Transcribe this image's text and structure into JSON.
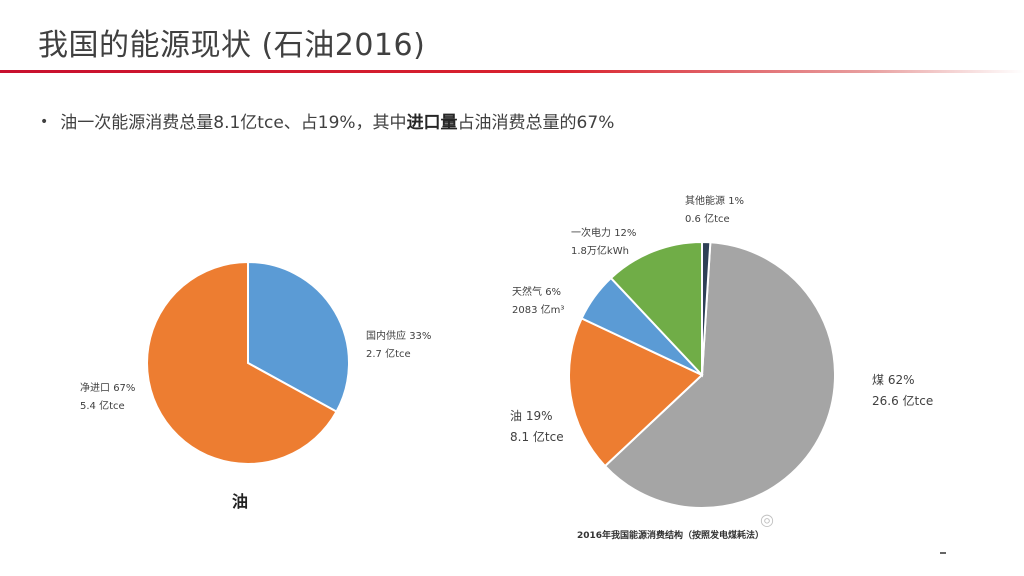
{
  "slide": {
    "title": "我国的能源现状 (石油2016)",
    "bullet": {
      "pre": "油一次能源消费总量8.1亿tce、占19%，其中",
      "bold": "进口量",
      "post": "占油消费总量的67%"
    }
  },
  "colors": {
    "title_rule": "#d9232e",
    "orange": "#ed7d31",
    "blue": "#5b9bd5",
    "gray": "#a5a5a5",
    "green": "#70ad47",
    "navy": "#2f4057"
  },
  "chart_data": [
    {
      "type": "pie",
      "title": "油",
      "slices": [
        {
          "label": "国内供应",
          "pct": "33%",
          "value": 33,
          "amount": "2.7 亿tce",
          "color": "#5b9bd5"
        },
        {
          "label": "净进口",
          "pct": "67%",
          "value": 67,
          "amount": "5.4 亿tce",
          "color": "#ed7d31"
        }
      ]
    },
    {
      "type": "pie",
      "title": "2016年我国能源消费结构（按照发电煤耗法）",
      "slices": [
        {
          "label": "煤",
          "pct": "62%",
          "value": 62,
          "amount": "26.6 亿tce",
          "color": "#a5a5a5"
        },
        {
          "label": "油",
          "pct": "19%",
          "value": 19,
          "amount": "8.1 亿tce",
          "color": "#ed7d31"
        },
        {
          "label": "天然气",
          "pct": "6%",
          "value": 6,
          "amount": "2083 亿m³",
          "color": "#5b9bd5"
        },
        {
          "label": "一次电力",
          "pct": "12%",
          "value": 12,
          "amount": "1.8万亿kWh",
          "color": "#70ad47"
        },
        {
          "label": "其他能源",
          "pct": "1%",
          "value": 1,
          "amount": "0.6 亿tce",
          "color": "#2f4057"
        }
      ]
    }
  ]
}
